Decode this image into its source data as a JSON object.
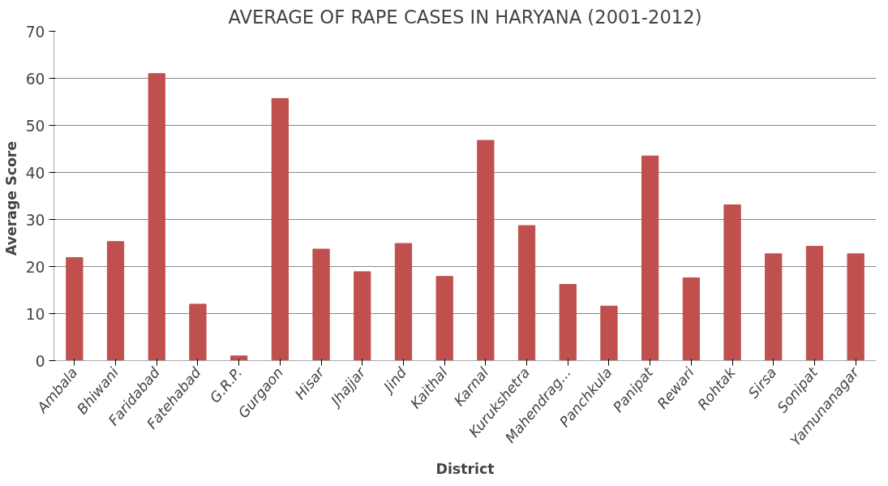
{
  "chart_data": {
    "type": "bar",
    "title": "AVERAGE OF RAPE CASES IN HARYANA (2001-2012)",
    "xlabel": "District",
    "ylabel": "Average  Score",
    "categories": [
      "Ambala",
      "Bhiwani",
      "Faridabad",
      "Fatehabad",
      "G.R.P.",
      "Gurgaon",
      "Hisar",
      "Jhajjar",
      "Jind",
      "Kaithal",
      "Karnal",
      "Kurukshetra",
      "Mahendrag...",
      "Panchkula",
      "Panipat",
      "Rewari",
      "Rohtak",
      "Sirsa",
      "Sonipat",
      "Yamunanagar"
    ],
    "values": [
      21.9,
      25.3,
      61.0,
      12.0,
      1.0,
      55.7,
      23.7,
      18.9,
      24.9,
      17.9,
      46.8,
      28.7,
      16.2,
      11.6,
      43.5,
      17.6,
      33.1,
      22.7,
      24.3,
      22.7
    ],
    "color": "#c0504d",
    "ylim": [
      0,
      70
    ],
    "yticks": [
      0,
      10,
      20,
      30,
      40,
      50,
      60,
      70
    ],
    "grid": "y"
  }
}
